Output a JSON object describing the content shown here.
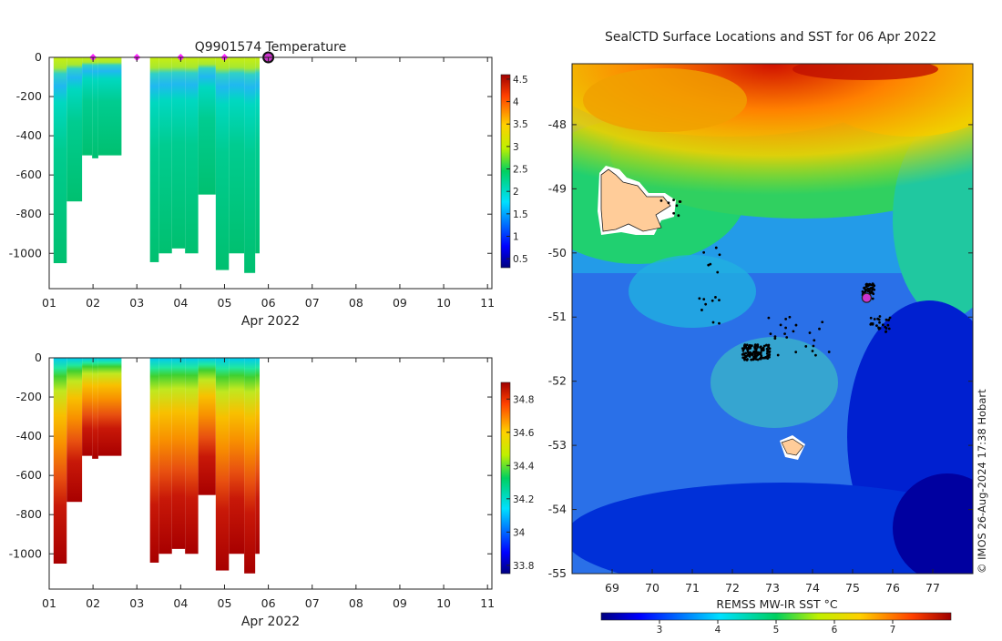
{
  "left_title": "Q9901574  Temperature",
  "xaxis_label": "Apr 2022",
  "map_title": "SealCTD Surface Locations and SST for 06 Apr 2022",
  "map_colorbar_label": "REMSS MW-IR SST °C",
  "credit": "© IMOS 26-Aug-2024 17:38 Hobart",
  "colors": {
    "profile_marker": "#ff22ff",
    "current_marker": "#cc33cc",
    "land": "#ffcc99",
    "track": "#000000"
  },
  "chart_data": [
    {
      "type": "heatmap",
      "title": "Q9901574  Temperature",
      "xlabel": "Apr 2022",
      "x_ticks": [
        "01",
        "02",
        "03",
        "04",
        "05",
        "06",
        "07",
        "08",
        "09",
        "10",
        "11"
      ],
      "y_ticks": [
        "0",
        "-200",
        "-400",
        "-600",
        "-800",
        "-1000"
      ],
      "xlim": [
        1,
        11.1
      ],
      "ylim": [
        -1180,
        0
      ],
      "profile_markers_x": [
        2.0,
        3.0,
        4.0,
        5.0
      ],
      "current_marker_x": 6.0,
      "profiles": [
        {
          "start": 1.1,
          "end": 1.4,
          "depth": 1050
        },
        {
          "start": 1.4,
          "end": 1.75,
          "depth": 735
        },
        {
          "start": 1.75,
          "end": 1.98,
          "depth": 500
        },
        {
          "start": 1.98,
          "end": 2.12,
          "depth": 515
        },
        {
          "start": 2.12,
          "end": 2.65,
          "depth": 500
        },
        {
          "start": 3.3,
          "end": 3.5,
          "depth": 1045
        },
        {
          "start": 3.5,
          "end": 3.8,
          "depth": 1000
        },
        {
          "start": 3.8,
          "end": 4.1,
          "depth": 975
        },
        {
          "start": 4.1,
          "end": 4.4,
          "depth": 1000
        },
        {
          "start": 4.4,
          "end": 4.8,
          "depth": 700
        },
        {
          "start": 4.8,
          "end": 5.1,
          "depth": 1085
        },
        {
          "start": 5.1,
          "end": 5.45,
          "depth": 1000
        },
        {
          "start": 5.45,
          "end": 5.7,
          "depth": 1100
        },
        {
          "start": 5.7,
          "end": 5.8,
          "depth": 1000
        }
      ],
      "colorbar": {
        "ticks": [
          "0.5",
          "1",
          "1.5",
          "2",
          "2.5",
          "3",
          "3.5",
          "4",
          "4.5"
        ],
        "range": [
          0.3,
          4.6
        ]
      }
    },
    {
      "type": "heatmap",
      "title": "",
      "xlabel": "Apr 2022",
      "x_ticks": [
        "01",
        "02",
        "03",
        "04",
        "05",
        "06",
        "07",
        "08",
        "09",
        "10",
        "11"
      ],
      "y_ticks": [
        "0",
        "-200",
        "-400",
        "-600",
        "-800",
        "-1000"
      ],
      "xlim": [
        1,
        11.1
      ],
      "ylim": [
        -1180,
        0
      ],
      "colorbar": {
        "ticks": [
          "33.8",
          "34",
          "34.2",
          "34.4",
          "34.6",
          "34.8"
        ],
        "range": [
          33.75,
          34.9
        ]
      }
    },
    {
      "type": "heatmap",
      "title": "SealCTD Surface Locations and SST for 06 Apr 2022",
      "x_ticks": [
        "69",
        "70",
        "71",
        "72",
        "73",
        "74",
        "75",
        "76",
        "77"
      ],
      "y_ticks": [
        "-48",
        "-49",
        "-50",
        "-51",
        "-52",
        "-53",
        "-54",
        "-55"
      ],
      "xlim": [
        68,
        78
      ],
      "ylim": [
        -55,
        -47.05
      ],
      "current_position": {
        "lon": 75.35,
        "lat": -50.7
      },
      "colorbar": {
        "label": "REMSS MW-IR SST °C",
        "ticks": [
          "3",
          "4",
          "5",
          "6",
          "7"
        ],
        "range": [
          2.0,
          8.0
        ]
      }
    }
  ]
}
